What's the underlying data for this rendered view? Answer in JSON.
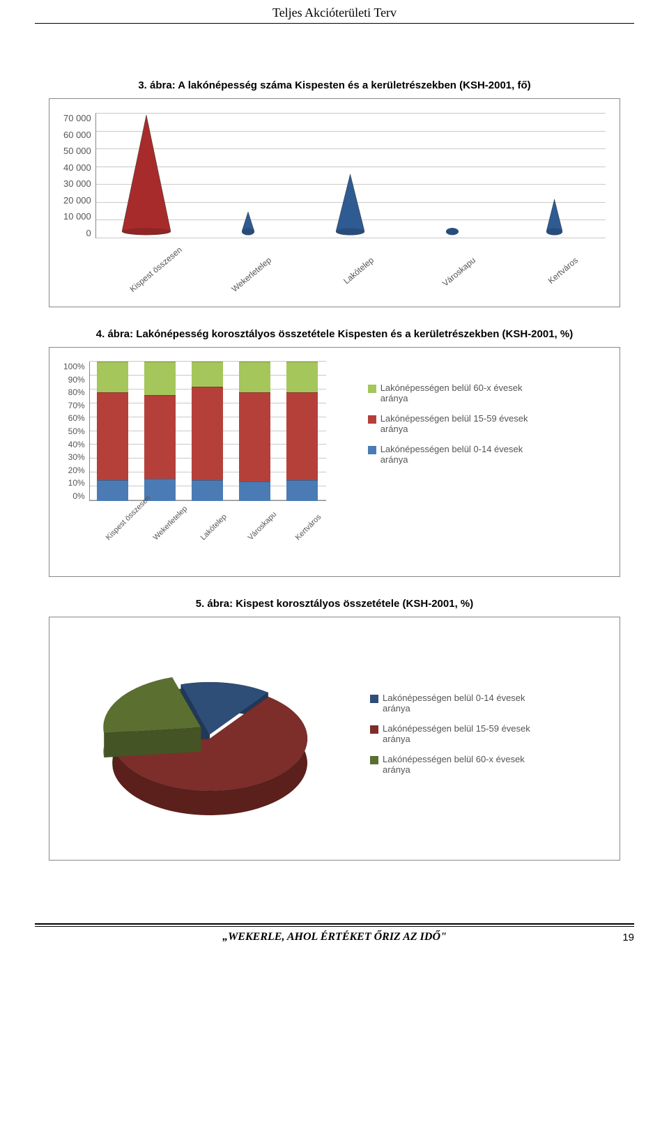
{
  "header": {
    "title": "Teljes Akcióterületi Terv"
  },
  "figure1": {
    "title": "3. ábra: A lakónépesség száma Kispesten és a kerületrészekben (KSH-2001, fő)",
    "type": "cone",
    "ylim": [
      0,
      70000
    ],
    "ytick_step": 10000,
    "yticks": [
      "70 000",
      "60 000",
      "50 000",
      "40 000",
      "30 000",
      "20 000",
      "10 000",
      "0"
    ],
    "categories": [
      "Kispest összesen",
      "Wekerletelep",
      "Lakótelep",
      "Városkapu",
      "Kertváros"
    ],
    "values": [
      65000,
      11000,
      32000,
      2000,
      18000
    ],
    "colors": [
      "#a82b2b",
      "#2f5b93",
      "#2f5b93",
      "#2f5b93",
      "#2f5b93"
    ],
    "background_color": "#ffffff",
    "grid_color": "#c9c9c9",
    "label_fontsize": 12,
    "title_fontsize": 15
  },
  "figure2": {
    "title": "4. ábra: Lakónépesség korosztályos összetétele Kispesten és a kerületrészekben (KSH-2001, %)",
    "type": "stacked-bar",
    "ylim": [
      0,
      100
    ],
    "ytick_step": 10,
    "yticks": [
      "0%",
      "10%",
      "20%",
      "30%",
      "40%",
      "50%",
      "60%",
      "70%",
      "80%",
      "90%",
      "100%"
    ],
    "categories": [
      "Kispest összesen",
      "Wekerletelep",
      "Lakótelep",
      "Városkapu",
      "Kertváros"
    ],
    "series": [
      {
        "label": "Lakónépességen belül 60-x évesek aránya",
        "color": "#a4c65a",
        "values": [
          22,
          24,
          18,
          22,
          22
        ]
      },
      {
        "label": "Lakónépességen belül 15-59 évesek aránya",
        "color": "#b5403a",
        "values": [
          63,
          60,
          67,
          64,
          63
        ]
      },
      {
        "label": "Lakónépességen belül 0-14 évesek aránya",
        "color": "#4a7bb5",
        "values": [
          15,
          16,
          15,
          14,
          15
        ]
      }
    ],
    "bar_width": 0.7,
    "background_color": "#ffffff",
    "grid_color": "#c9c9c9",
    "label_fontsize": 11,
    "title_fontsize": 15
  },
  "figure3": {
    "title": "5. ábra: Kispest korosztályos összetétele (KSH-2001, %)",
    "type": "pie",
    "slices": [
      {
        "label": "Lakónépességen belül 0-14 évesek aránya",
        "color": "#2e4e78",
        "color_dark": "#20395a",
        "value": 15
      },
      {
        "label": "Lakónépességen belül 15-59 évesek aránya",
        "color": "#7d2e2a",
        "color_dark": "#5b1f1c",
        "value": 63
      },
      {
        "label": "Lakónépességen belül 60-x évesek aránya",
        "color": "#5b7030",
        "color_dark": "#445424",
        "value": 22
      }
    ],
    "background_color": "#ffffff",
    "label_fontsize": 13,
    "title_fontsize": 15
  },
  "footer": {
    "text": "„WEKERLE, AHOL ÉRTÉKET ŐRIZ AZ IDŐ\"",
    "page_number": "19"
  }
}
